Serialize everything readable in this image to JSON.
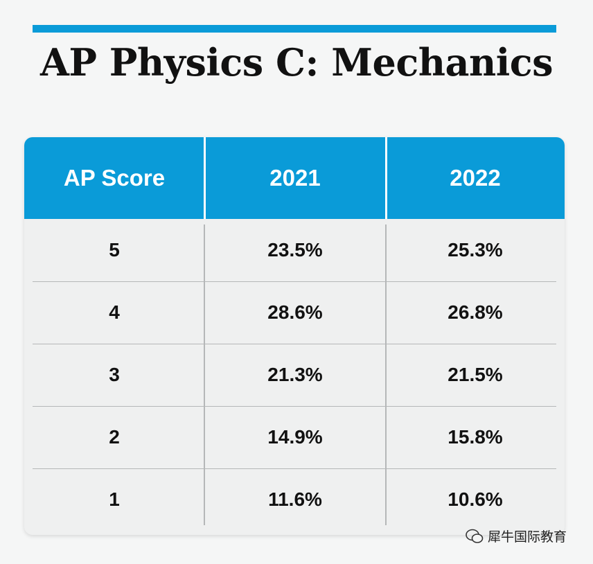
{
  "title": "AP Physics C: Mechanics",
  "table": {
    "header": [
      "AP Score",
      "2021",
      "2022"
    ],
    "rows": [
      [
        "5",
        "23.5%",
        "25.3%"
      ],
      [
        "4",
        "28.6%",
        "26.8%"
      ],
      [
        "3",
        "21.3%",
        "21.5%"
      ],
      [
        "2",
        "14.9%",
        "15.8%"
      ],
      [
        "1",
        "11.6%",
        "10.6%"
      ]
    ]
  },
  "watermark": "犀牛国际教育"
}
